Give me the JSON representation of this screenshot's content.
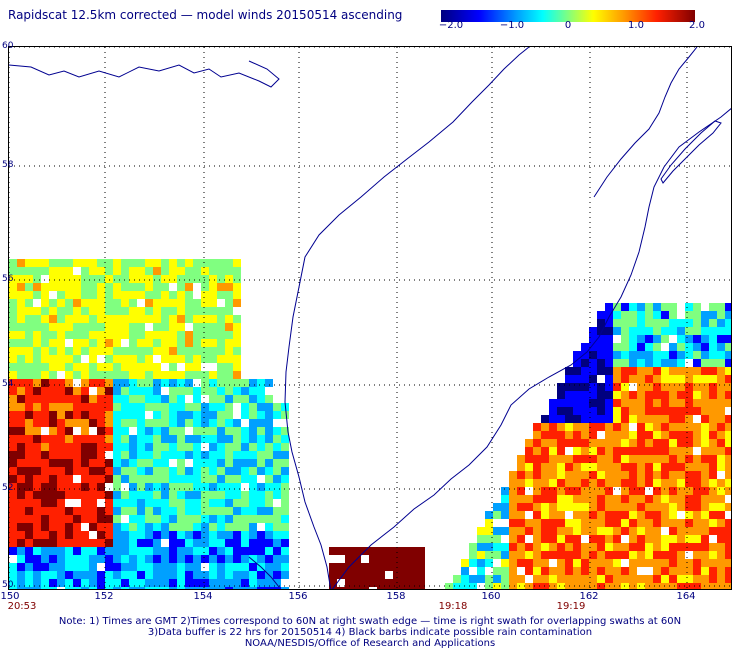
{
  "title": "Rapidscat 12.5km corrected — model winds 20150514 ascending",
  "colorbar": {
    "ticks": [
      "−2.0",
      "−1.0",
      "0",
      "1.0",
      "2.0"
    ],
    "range": [
      -2.0,
      2.0
    ],
    "colors": [
      "#00007f",
      "#0000ff",
      "#00a0ff",
      "#00ffff",
      "#80ff80",
      "#ffff00",
      "#ff9900",
      "#ff2000",
      "#800000"
    ]
  },
  "map": {
    "lon_labels": [
      "150",
      "152",
      "154",
      "156",
      "158",
      "160",
      "162",
      "164"
    ],
    "lat_labels": [
      "60",
      "58",
      "56",
      "54",
      "52",
      "50"
    ],
    "lon_range": [
      150,
      165
    ],
    "lat_range": [
      50,
      60
    ],
    "coastline_color": "#000090",
    "grid": "dotted"
  },
  "times": [
    {
      "label": "20:53",
      "lon": 150.3
    },
    {
      "label": "19:18",
      "lon": 159.0
    },
    {
      "label": "19:19",
      "lon": 161.5
    }
  ],
  "notes": [
    "Note: 1) Times are GMT 2)Times correspond to 60N at right swath edge — time is right swath for overlapping swaths at 60N",
    "3)Data buffer is 22 hrs for 20150514 4) Black barbs indicate possible rain contamination",
    "NOAA/NESDIS/Office of Research and Applications"
  ]
}
